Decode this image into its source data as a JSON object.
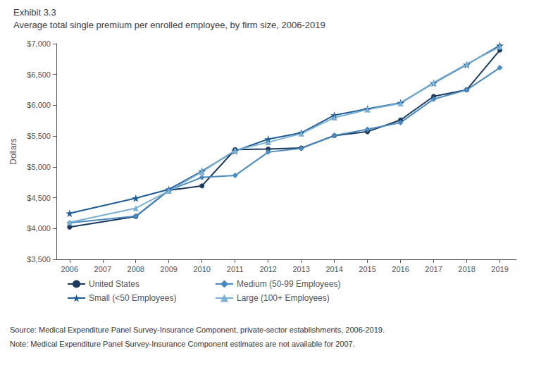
{
  "chart_data": {
    "type": "line",
    "title": "Exhibit 3.3",
    "subtitle": "Average total single premium per enrolled employee, by firm size, 2006-2019",
    "x": [
      2006,
      2007,
      2008,
      2009,
      2010,
      2011,
      2012,
      2013,
      2014,
      2015,
      2016,
      2017,
      2018,
      2019
    ],
    "xlim": [
      2005.6,
      2019.5
    ],
    "xticks": [
      2006,
      2007,
      2008,
      2009,
      2010,
      2011,
      2012,
      2013,
      2014,
      2015,
      2016,
      2017,
      2018,
      2019
    ],
    "ylabel": "Dollars",
    "ylim": [
      3500,
      7000
    ],
    "yticks": [
      {
        "value": 3500,
        "label": "$3,500"
      },
      {
        "value": 4000,
        "label": "$4,000"
      },
      {
        "value": 4500,
        "label": "$4,500"
      },
      {
        "value": 5000,
        "label": "$5,000"
      },
      {
        "value": 5500,
        "label": "$5,500"
      },
      {
        "value": 6000,
        "label": "$6,000"
      },
      {
        "value": 6500,
        "label": "$6,500"
      },
      {
        "value": 7000,
        "label": "$7,000"
      }
    ],
    "grid": false,
    "legend": "bottom",
    "annotations": [
      "Source: Medical Expenditure Panel Survey-Insurance Component, private-sector establishments, 2006-2019.",
      "Note: Medical Expenditure Panel Survey-Insurance Component estimates are not available for 2007."
    ],
    "series": [
      {
        "name": "United States",
        "color": "#1b3a5e",
        "marker": "circle",
        "values": [
          4024,
          null,
          4196,
          4620,
          4693,
          5282,
          5290,
          5306,
          5507,
          5572,
          5762,
          6145,
          6252,
          6896
        ]
      },
      {
        "name": "Small (<50 Employees)",
        "color": "#1e5c96",
        "marker": "star",
        "values": [
          4247,
          null,
          4493,
          4636,
          4930,
          5260,
          5450,
          5552,
          5840,
          5942,
          6038,
          6360,
          6660,
          6970
        ]
      },
      {
        "name": "Medium (50-99 Employees)",
        "color": "#4a8abf",
        "marker": "diamond",
        "values": [
          4093,
          null,
          4200,
          4620,
          4830,
          4860,
          5240,
          5300,
          5510,
          5610,
          5720,
          6100,
          6250,
          6610
        ]
      },
      {
        "name": "Large (100+ Employees)",
        "color": "#7ab0d4",
        "marker": "triangle",
        "values": [
          4100,
          null,
          4330,
          4610,
          4920,
          5270,
          5400,
          5540,
          5800,
          5930,
          6030,
          6370,
          6670,
          6950
        ]
      }
    ]
  }
}
